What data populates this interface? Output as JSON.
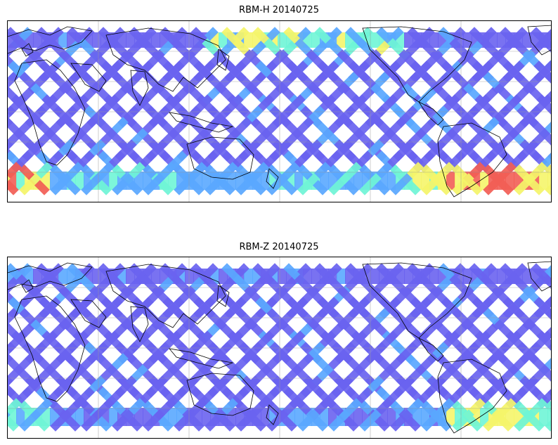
{
  "panels": [
    {
      "title": "RBM-H 20140725",
      "variant": "H"
    },
    {
      "title": "RBM-Z 20140725",
      "variant": "Z"
    }
  ],
  "colormap": {
    "low": "#6a63f0",
    "mid_low": "#5aa8ff",
    "mid": "#6ff5d6",
    "mid_high": "#f5f56a",
    "high": "#f25e55"
  },
  "map": {
    "projection": "equirectangular",
    "gridlines": true,
    "coastlines": true
  }
}
